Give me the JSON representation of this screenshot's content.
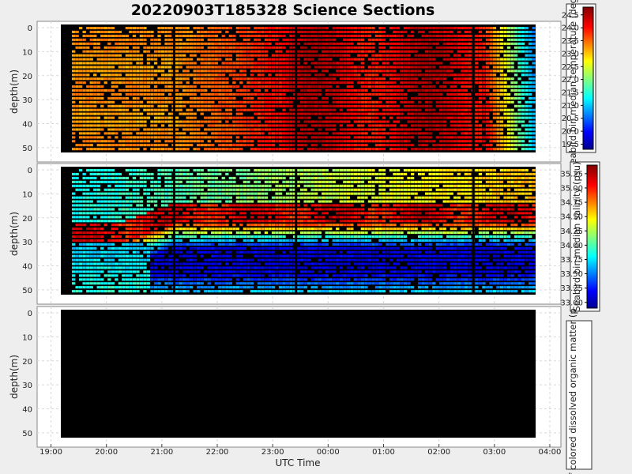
{
  "chart_data": {
    "type": "heatmap",
    "title": "20220903T185328 Science Sections",
    "x_axis": {
      "label": "UTC Time",
      "ticks": [
        "19:00",
        "20:00",
        "21:00",
        "22:00",
        "23:00",
        "00:00",
        "01:00",
        "02:00",
        "03:00",
        "04:00"
      ]
    },
    "panels": [
      {
        "id": "temperature",
        "ylabel": "depth(m)",
        "y_ticks": [
          "0",
          "10",
          "20",
          "30",
          "40",
          "50"
        ],
        "ylim": [
          0,
          52
        ],
        "y_inverted": true,
        "colorbar": {
          "label": "seabird.bin median temperature (degC)",
          "min": 19.3,
          "max": 24.8,
          "ticks": [
            "24.5",
            "24.0",
            "23.5",
            "23.0",
            "22.5",
            "22.0",
            "21.5",
            "21.0",
            "20.5",
            "20.0",
            "19.5"
          ],
          "colormap": "jet"
        },
        "has_data": true
      },
      {
        "id": "salinity",
        "ylabel": "depth(m)",
        "y_ticks": [
          "0",
          "10",
          "20",
          "30",
          "40",
          "50"
        ],
        "ylim": [
          0,
          52
        ],
        "y_inverted": true,
        "colorbar": {
          "label": "Seabird.bin median salinity (psu)",
          "min": 32.9,
          "max": 35.4,
          "ticks": [
            "35.25",
            "35.00",
            "34.75",
            "34.50",
            "34.25",
            "34.00",
            "33.75",
            "33.50",
            "33.25",
            "33.00"
          ],
          "colormap": "jet"
        },
        "has_data": true
      },
      {
        "id": "cdom",
        "ylabel": "depth(m)",
        "y_ticks": [
          "0",
          "10",
          "20",
          "30",
          "40",
          "50"
        ],
        "ylim": [
          0,
          52
        ],
        "y_inverted": true,
        "colorbar": {
          "label": "of colored dissolved organic matter (p",
          "ticks": []
        },
        "has_data": false
      }
    ]
  }
}
